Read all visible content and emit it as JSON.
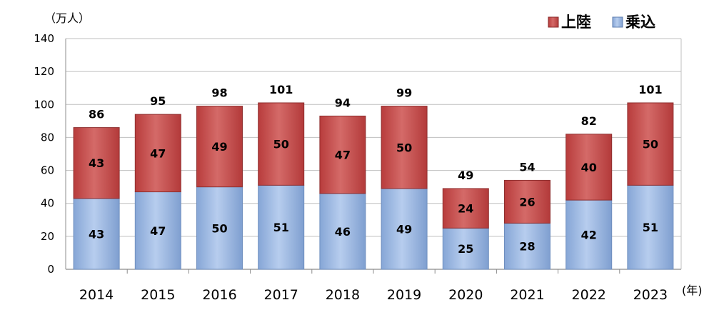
{
  "chart_data": {
    "type": "bar",
    "stacked": true,
    "categories": [
      "2014",
      "2015",
      "2016",
      "2017",
      "2018",
      "2019",
      "2020",
      "2021",
      "2022",
      "2023"
    ],
    "series": [
      {
        "name": "乗込",
        "values": [
          43,
          47,
          50,
          51,
          46,
          49,
          25,
          28,
          42,
          51
        ],
        "color": "#9ab9e4"
      },
      {
        "name": "上陸",
        "values": [
          43,
          47,
          49,
          50,
          47,
          50,
          24,
          26,
          40,
          50
        ],
        "color": "#c9504f"
      }
    ],
    "totals": [
      86,
      95,
      98,
      101,
      94,
      99,
      49,
      54,
      82,
      101
    ],
    "y_unit": "（万人）",
    "x_unit": "(年)",
    "ylim": [
      0,
      140
    ],
    "yticks": [
      0,
      20,
      40,
      60,
      80,
      100,
      120,
      140
    ],
    "grid": true,
    "legend_position": "top-right",
    "legend_order": [
      "上陸",
      "乗込"
    ]
  }
}
